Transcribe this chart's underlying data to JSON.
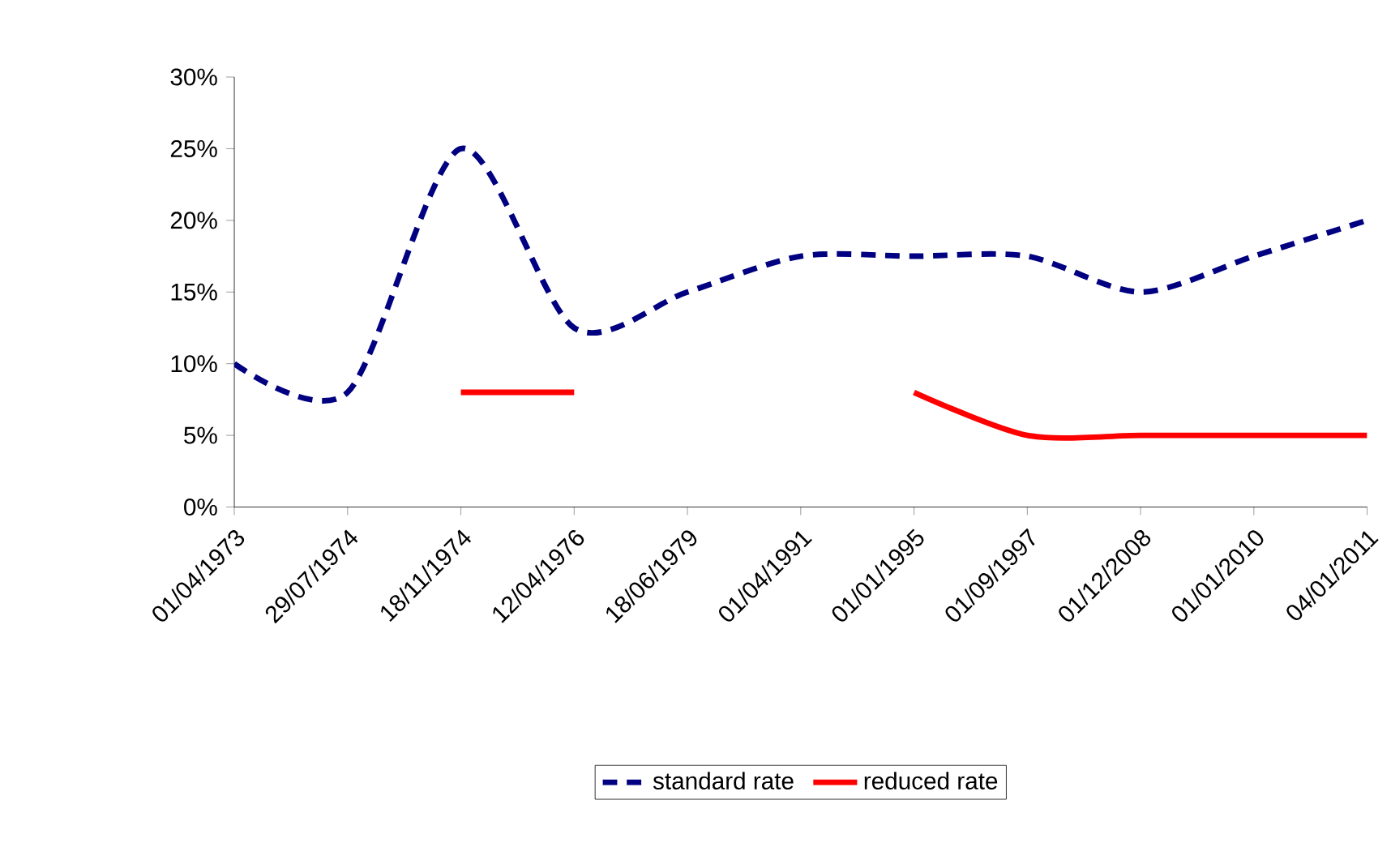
{
  "chart_data": {
    "type": "line",
    "categories": [
      "01/04/1973",
      "29/07/1974",
      "18/11/1974",
      "12/04/1976",
      "18/06/1979",
      "01/04/1991",
      "01/01/1995",
      "01/09/1997",
      "01/12/2008",
      "01/01/2010",
      "04/01/2011"
    ],
    "series": [
      {
        "name": "standard rate",
        "color": "#000080",
        "line_style": "dashed",
        "values": [
          10,
          8,
          25,
          12.5,
          15,
          17.5,
          17.5,
          17.5,
          15,
          17.5,
          20
        ]
      },
      {
        "name": "reduced rate",
        "color": "#ff0000",
        "line_style": "solid",
        "values": [
          null,
          null,
          8,
          8,
          null,
          null,
          8,
          5,
          5,
          5,
          5
        ]
      }
    ],
    "ylim": [
      0,
      30
    ],
    "yticks": [
      {
        "value": 0,
        "label": "0%"
      },
      {
        "value": 5,
        "label": "5%"
      },
      {
        "value": 10,
        "label": "10%"
      },
      {
        "value": 15,
        "label": "15%"
      },
      {
        "value": 20,
        "label": "20%"
      },
      {
        "value": 25,
        "label": "25%"
      },
      {
        "value": 30,
        "label": "30%"
      }
    ],
    "legend": "bottom",
    "marker": "none",
    "grid": false
  }
}
